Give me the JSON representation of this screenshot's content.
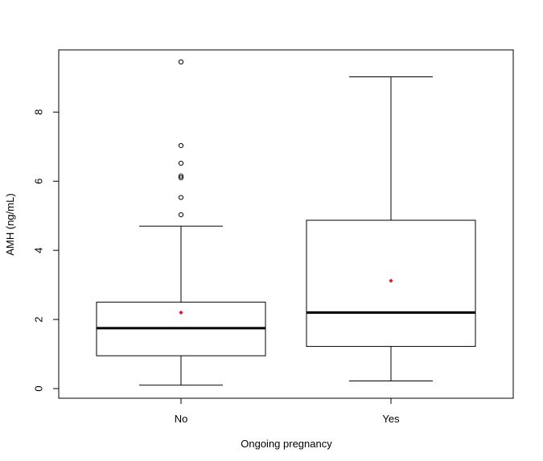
{
  "chart_data": {
    "type": "box",
    "xlabel": "Ongoing pregnancy",
    "ylabel": "AMH (ng/mL)",
    "ylim": [
      -0.25,
      9.6
    ],
    "yticks": [
      0,
      2,
      4,
      6,
      8
    ],
    "grid": false,
    "groups": [
      {
        "category": "No",
        "whisker_low": 0.1,
        "q1": 0.95,
        "median": 1.75,
        "q3": 2.5,
        "whisker_high": 4.7,
        "mean": 2.2,
        "outliers": [
          5.03,
          5.53,
          6.1,
          6.15,
          6.52,
          7.03,
          9.45
        ]
      },
      {
        "category": "Yes",
        "whisker_low": 0.22,
        "q1": 1.22,
        "median": 2.2,
        "q3": 4.87,
        "whisker_high": 9.02,
        "mean": 3.12,
        "outliers": []
      }
    ],
    "colors": {
      "mean_marker": "#e8161e",
      "box_stroke": "#000000"
    }
  }
}
